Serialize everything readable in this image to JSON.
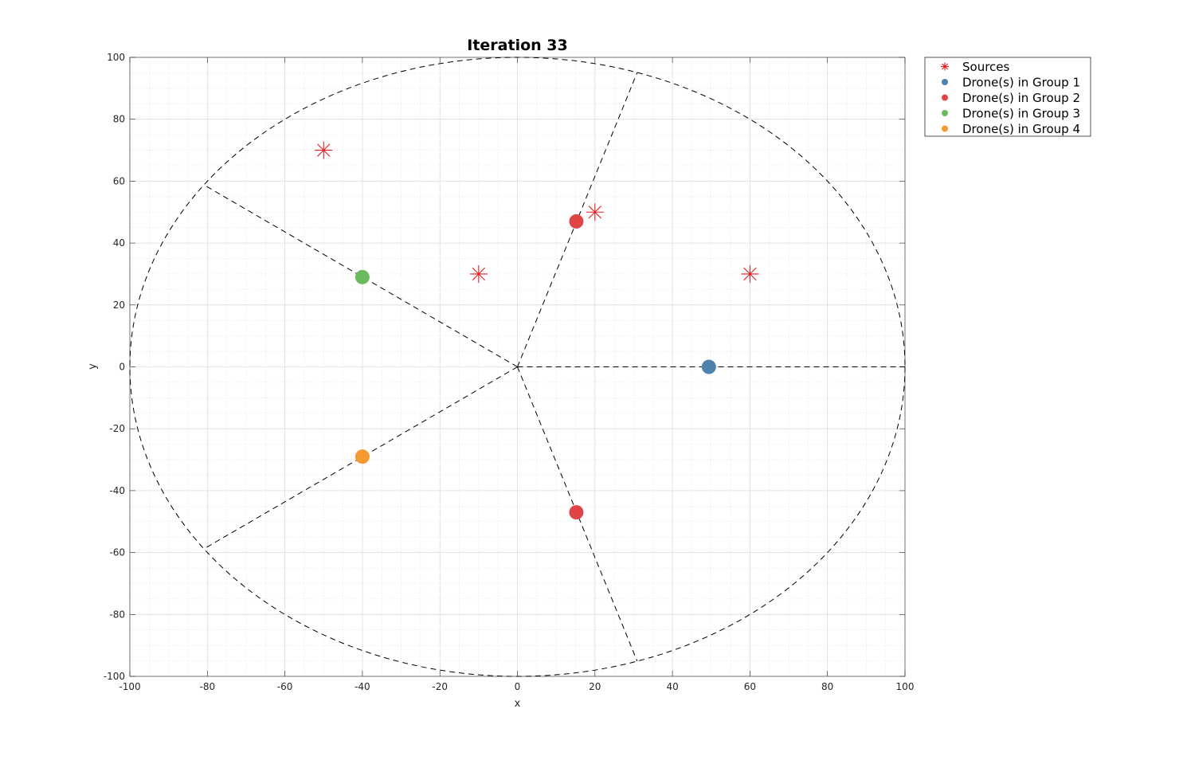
{
  "chart_data": {
    "type": "scatter",
    "title": "Iteration 33",
    "xlabel": "x",
    "ylabel": "y",
    "xlim": [
      -100,
      100
    ],
    "ylim": [
      -100,
      100
    ],
    "xticks": [
      -100,
      -80,
      -60,
      -40,
      -20,
      0,
      20,
      40,
      60,
      80,
      100
    ],
    "yticks": [
      -100,
      -80,
      -60,
      -40,
      -20,
      0,
      20,
      40,
      60,
      80,
      100
    ],
    "grid": true,
    "minor_grid": true,
    "legend_position": "outside top-right",
    "boundary": {
      "shape": "circle",
      "center": [
        0,
        0
      ],
      "radius": 100,
      "style": "dashed"
    },
    "partition_lines": [
      {
        "from": [
          0,
          0
        ],
        "to": [
          100,
          0
        ]
      },
      {
        "from": [
          0,
          0
        ],
        "to": [
          30.9,
          95.1
        ]
      },
      {
        "from": [
          0,
          0
        ],
        "to": [
          -80.9,
          58.8
        ]
      },
      {
        "from": [
          0,
          0
        ],
        "to": [
          -80.9,
          -58.8
        ]
      },
      {
        "from": [
          0,
          0
        ],
        "to": [
          30.9,
          -95.1
        ]
      }
    ],
    "series": [
      {
        "name": "Sources",
        "marker": "asterisk",
        "color": "#e41a1c",
        "points": [
          [
            -50,
            70
          ],
          [
            20,
            50
          ],
          [
            -10,
            30
          ],
          [
            60,
            30
          ]
        ]
      },
      {
        "name": "Drone(s) in Group 1",
        "marker": "circle",
        "color": "#4f81ad",
        "points": [
          [
            49.4,
            0
          ]
        ]
      },
      {
        "name": "Drone(s) in Group 2",
        "marker": "circle",
        "color": "#e04545",
        "points": [
          [
            15.2,
            47
          ],
          [
            15.2,
            -47
          ]
        ]
      },
      {
        "name": "Drone(s) in Group 3",
        "marker": "circle",
        "color": "#6cba5e",
        "points": [
          [
            -40,
            29
          ]
        ]
      },
      {
        "name": "Drone(s) in Group 4",
        "marker": "circle",
        "color": "#f59a30",
        "points": [
          [
            -40,
            -29
          ]
        ]
      }
    ]
  }
}
